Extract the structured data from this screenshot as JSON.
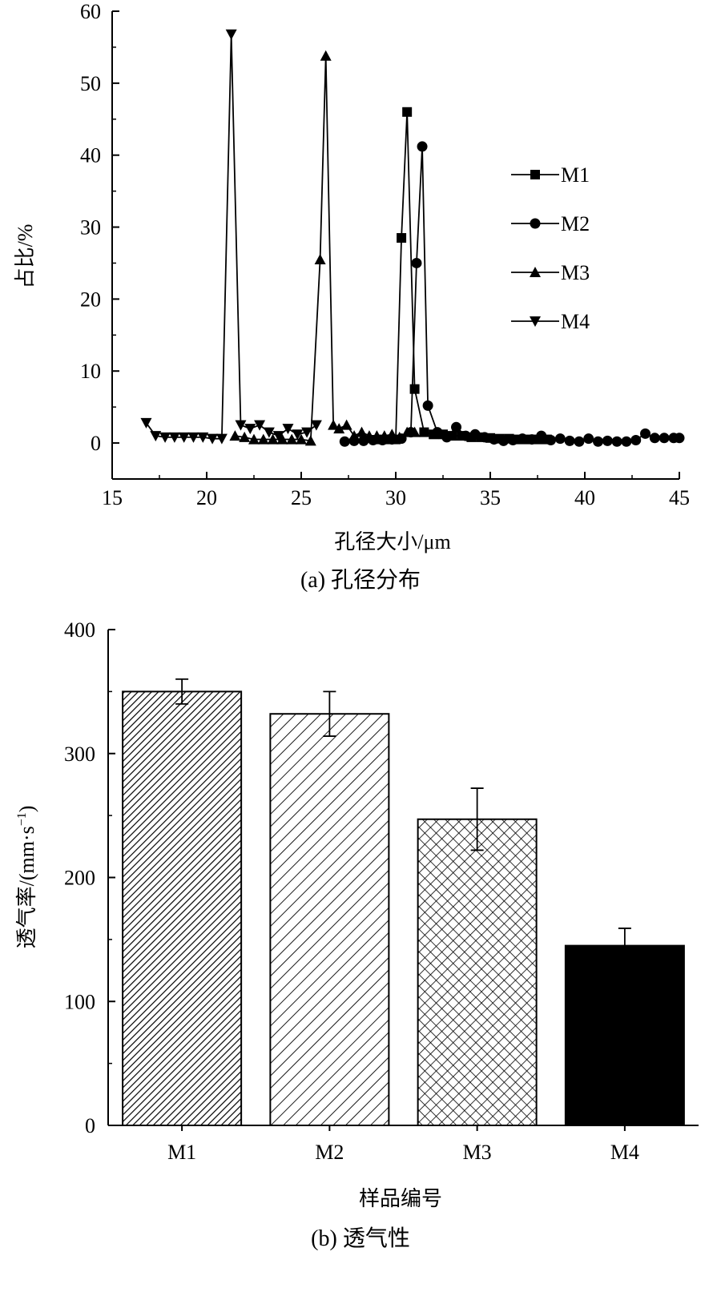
{
  "chart_data": [
    {
      "type": "line",
      "title": "",
      "caption": "(a) 孔径分布",
      "xlabel": "孔径大小/μm",
      "ylabel": "占比/%",
      "xlim": [
        15,
        45
      ],
      "ylim": [
        -5,
        60
      ],
      "xticks": [
        15,
        20,
        25,
        30,
        35,
        40,
        45
      ],
      "yticks": [
        0,
        10,
        20,
        30,
        40,
        50,
        60
      ],
      "grid": false,
      "legend": "center-right",
      "series": [
        {
          "name": "M1",
          "marker": "square",
          "x": [
            29.2,
            29.6,
            30.0,
            30.3,
            30.6,
            31.0,
            31.5,
            32.0,
            32.5,
            33.0,
            33.5,
            34.0,
            34.5,
            35.0,
            35.5,
            36.0,
            36.5,
            37.0,
            37.5,
            38.0
          ],
          "y": [
            0.5,
            0.5,
            0.5,
            28.5,
            46,
            7.5,
            1.5,
            1.2,
            1.2,
            1.0,
            1.0,
            0.8,
            0.8,
            0.7,
            0.6,
            0.6,
            0.5,
            0.5,
            0.5,
            0.5
          ]
        },
        {
          "name": "M2",
          "marker": "circle",
          "x": [
            27.3,
            27.8,
            28.3,
            28.8,
            29.3,
            29.8,
            30.3,
            30.8,
            31.1,
            31.4,
            31.7,
            32.2,
            32.7,
            33.2,
            33.7,
            34.2,
            34.7,
            35.2,
            35.7,
            36.2,
            36.7,
            37.2,
            37.7,
            38.2,
            38.7,
            39.2,
            39.7,
            40.2,
            40.7,
            41.2,
            41.7,
            42.2,
            42.7,
            43.2,
            43.7,
            44.2,
            44.7,
            45.0
          ],
          "y": [
            0.2,
            0.3,
            0.3,
            0.4,
            0.4,
            0.5,
            0.6,
            1.5,
            25,
            41.2,
            5.2,
            1.5,
            0.8,
            2.2,
            1.0,
            1.2,
            0.8,
            0.5,
            0.3,
            0.4,
            0.6,
            0.5,
            1.0,
            0.4,
            0.6,
            0.3,
            0.2,
            0.6,
            0.2,
            0.3,
            0.2,
            0.2,
            0.4,
            1.3,
            0.7,
            0.7,
            0.7,
            0.7
          ]
        },
        {
          "name": "M3",
          "marker": "triangle-up",
          "x": [
            21.5,
            22.0,
            22.5,
            23.0,
            23.5,
            24.0,
            24.5,
            25.0,
            25.5,
            26.0,
            26.3,
            26.7,
            27.0,
            27.4,
            27.8,
            28.2,
            28.6,
            29.0,
            29.4,
            29.8,
            30.2,
            30.6,
            31.0
          ],
          "y": [
            1.0,
            0.8,
            0.5,
            0.5,
            0.5,
            0.5,
            0.5,
            0.5,
            0.3,
            25.5,
            53.8,
            2.5,
            2.0,
            2.5,
            1.0,
            1.5,
            1.0,
            1.0,
            1.0,
            1.2,
            0.8,
            1.5,
            1.5
          ]
        },
        {
          "name": "M4",
          "marker": "triangle-down",
          "x": [
            16.8,
            17.3,
            17.8,
            18.3,
            18.8,
            19.3,
            19.8,
            20.3,
            20.8,
            21.3,
            21.8,
            22.3,
            22.8,
            23.3,
            23.8,
            24.3,
            24.8,
            25.3,
            25.8
          ],
          "y": [
            2.8,
            1.0,
            0.8,
            0.8,
            0.8,
            0.8,
            0.8,
            0.6,
            0.6,
            56.8,
            2.5,
            2.0,
            2.5,
            1.5,
            1.0,
            2.0,
            1.2,
            1.5,
            2.5
          ]
        }
      ]
    },
    {
      "type": "bar",
      "title": "",
      "caption": "(b) 透气性",
      "xlabel": "样品编号",
      "ylabel": "透气率/(mm·s",
      "ylabel_superscript": "−1",
      "ylabel_close": ")",
      "ylim": [
        0,
        400
      ],
      "yticks": [
        0,
        100,
        200,
        300,
        400
      ],
      "grid": false,
      "categories": [
        "M1",
        "M2",
        "M3",
        "M4"
      ],
      "values": [
        350,
        332,
        247,
        145
      ],
      "errors": [
        10,
        18,
        25,
        14
      ],
      "fills": [
        "dense-diagonal",
        "diagonal",
        "crosshatch",
        "solid"
      ]
    }
  ]
}
